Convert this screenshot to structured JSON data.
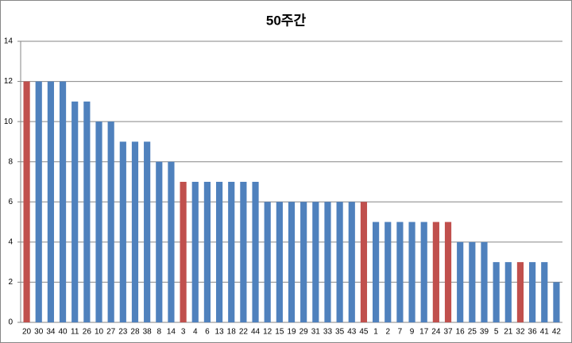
{
  "chart_data": {
    "type": "bar",
    "title": "50주간",
    "categories": [
      "20",
      "30",
      "34",
      "40",
      "11",
      "26",
      "10",
      "27",
      "23",
      "28",
      "38",
      "8",
      "14",
      "3",
      "4",
      "6",
      "13",
      "18",
      "22",
      "44",
      "12",
      "15",
      "19",
      "29",
      "31",
      "33",
      "35",
      "43",
      "45",
      "1",
      "2",
      "7",
      "9",
      "17",
      "24",
      "37",
      "16",
      "25",
      "39",
      "5",
      "21",
      "32",
      "36",
      "41",
      "42"
    ],
    "values": [
      12,
      12,
      12,
      12,
      11,
      11,
      10,
      10,
      9,
      9,
      9,
      8,
      8,
      7,
      7,
      7,
      7,
      7,
      7,
      7,
      6,
      6,
      6,
      6,
      6,
      6,
      6,
      6,
      6,
      5,
      5,
      5,
      5,
      5,
      5,
      5,
      4,
      4,
      4,
      3,
      3,
      3,
      3,
      3,
      2
    ],
    "colors": [
      "#c0504d",
      "#4f81bd",
      "#4f81bd",
      "#4f81bd",
      "#4f81bd",
      "#4f81bd",
      "#4f81bd",
      "#4f81bd",
      "#4f81bd",
      "#4f81bd",
      "#4f81bd",
      "#4f81bd",
      "#4f81bd",
      "#c0504d",
      "#4f81bd",
      "#4f81bd",
      "#4f81bd",
      "#4f81bd",
      "#4f81bd",
      "#4f81bd",
      "#4f81bd",
      "#4f81bd",
      "#4f81bd",
      "#4f81bd",
      "#4f81bd",
      "#4f81bd",
      "#4f81bd",
      "#4f81bd",
      "#c0504d",
      "#4f81bd",
      "#4f81bd",
      "#4f81bd",
      "#4f81bd",
      "#4f81bd",
      "#c0504d",
      "#c0504d",
      "#4f81bd",
      "#4f81bd",
      "#4f81bd",
      "#4f81bd",
      "#4f81bd",
      "#c0504d",
      "#4f81bd",
      "#4f81bd",
      "#4f81bd"
    ],
    "ylim": [
      0,
      14
    ],
    "yticks": [
      0,
      2,
      4,
      6,
      8,
      10,
      12,
      14
    ],
    "grid": true
  }
}
